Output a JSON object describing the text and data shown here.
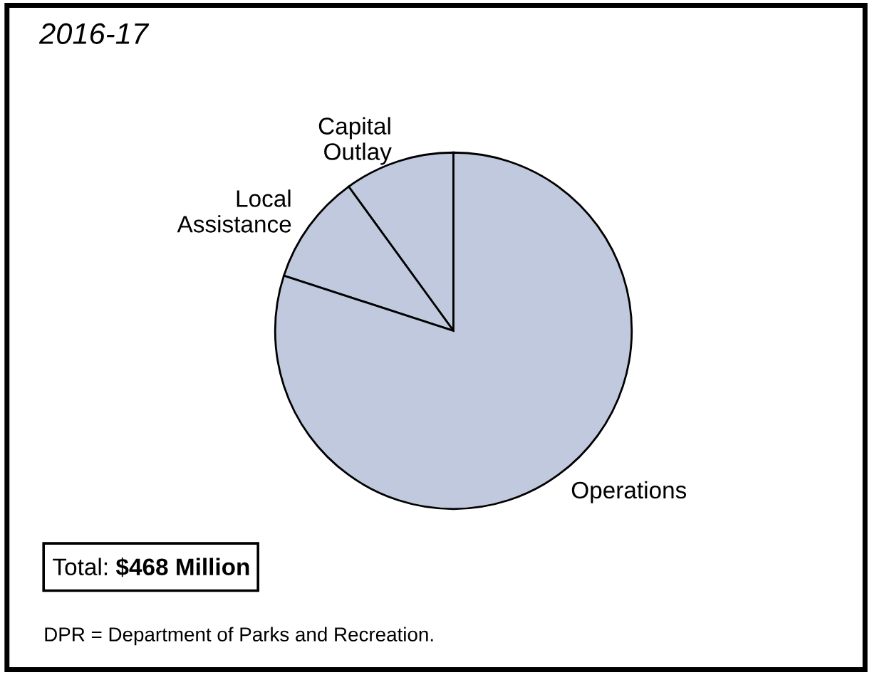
{
  "chart_data": {
    "type": "pie",
    "title": "2016-17",
    "categories": [
      "Capital Outlay",
      "Local Assistance",
      "Operations"
    ],
    "values": [
      10,
      10,
      80
    ],
    "colors": [
      "#c0c9dd",
      "#c0c9dd",
      "#c0c9dd"
    ],
    "annotations": [
      "Total: $468 Million",
      "DPR = Department of Parks and Recreation."
    ]
  }
}
